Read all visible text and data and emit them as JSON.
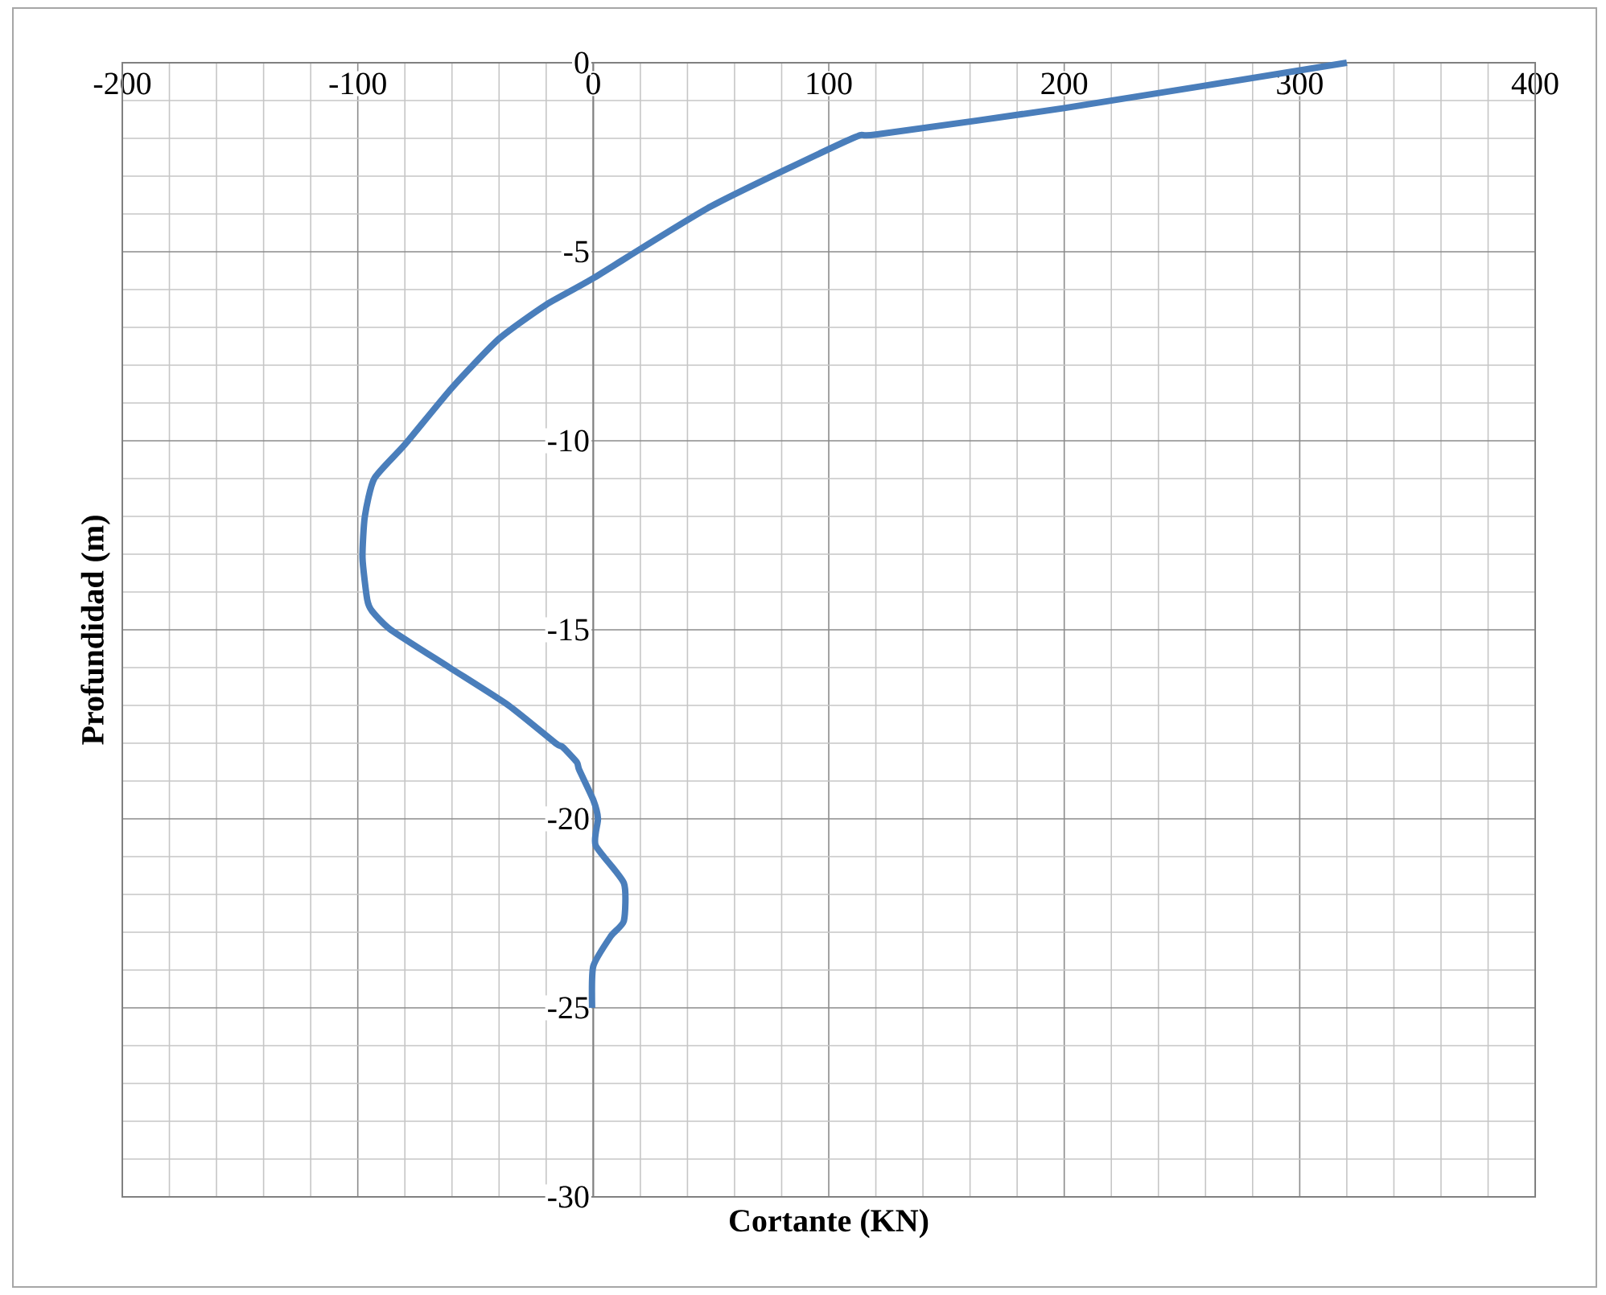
{
  "chart_data": {
    "type": "line",
    "xlabel": "Cortante (KN)",
    "ylabel": "Profundidad (m)",
    "xlim": [
      -200,
      400
    ],
    "ylim": [
      -30,
      0
    ],
    "xticks": [
      -200,
      -100,
      0,
      100,
      200,
      300,
      400
    ],
    "yticks": [
      -30,
      -25,
      -20,
      -15,
      -10,
      -5,
      0
    ],
    "grid": true,
    "line_style": "solid",
    "marker": "none",
    "series": [
      {
        "color": "#4a7ebb",
        "x": [
          320,
          200,
          120,
          110,
          50,
          0,
          -20,
          -40,
          -60,
          -80,
          -93,
          -97,
          -98,
          -96,
          -94,
          -86,
          -61,
          -36,
          -16,
          -13,
          -7,
          -6,
          0,
          2,
          1,
          13,
          13,
          7.5,
          0,
          -0.5
        ],
        "values": [
          0,
          -1.2,
          -1.9,
          -2.0,
          -3.8,
          -5.7,
          -6.4,
          -7.3,
          -8.6,
          -10.1,
          -11,
          -12,
          -13.1,
          -14.2,
          -14.5,
          -15,
          -16,
          -17,
          -18,
          -18.1,
          -18.5,
          -18.7,
          -19.5,
          -20,
          -20.7,
          -21.7,
          -22.7,
          -23.1,
          -23.9,
          -25
        ]
      }
    ]
  }
}
